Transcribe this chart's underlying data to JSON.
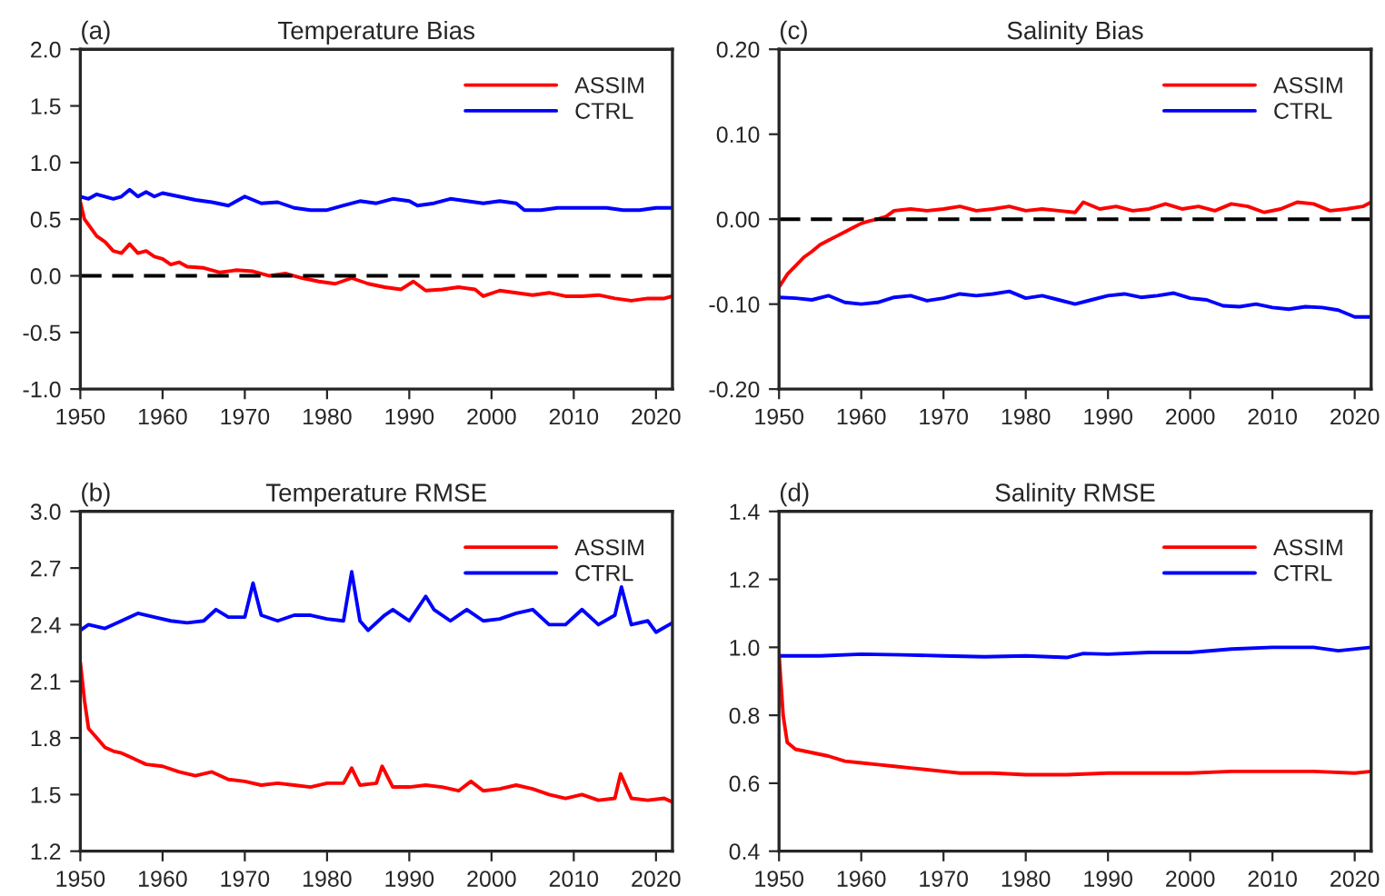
{
  "chart_data": [
    {
      "type": "line",
      "title": "Temperature Bias",
      "annotations": [
        "(a)"
      ],
      "legend": "top right",
      "grid": false,
      "line_style": "solid",
      "xlim": [
        1950,
        2022
      ],
      "xticks": [
        1950,
        1960,
        1970,
        1980,
        1990,
        2000,
        2010,
        2020
      ],
      "ylim": [
        -1.0,
        2.0
      ],
      "yticks": [
        {
          "value": -1.0,
          "label": "-1.0"
        },
        {
          "value": -0.5,
          "label": "-0.5"
        },
        {
          "value": 0.0,
          "label": "0.0"
        },
        {
          "value": 0.5,
          "label": "0.5"
        },
        {
          "value": 1.0,
          "label": "1.0"
        },
        {
          "value": 1.5,
          "label": "1.5"
        },
        {
          "value": 2.0,
          "label": "2.0"
        }
      ],
      "ref_lines": [
        {
          "axis": "y",
          "value": 0,
          "color": "#000000",
          "line_style": "dashed"
        }
      ],
      "series": [
        {
          "name": "ASSIM",
          "color": "#ff0000",
          "x": [
            1950,
            1950.5,
            1951,
            1952,
            1953,
            1954,
            1955,
            1956,
            1957,
            1958,
            1959,
            1960,
            1961,
            1962,
            1963,
            1965,
            1967,
            1969,
            1971,
            1973,
            1975,
            1977,
            1979,
            1981,
            1983,
            1985,
            1987,
            1989,
            1990.5,
            1992,
            1994,
            1996,
            1998,
            1999,
            2001,
            2003,
            2005,
            2007,
            2009,
            2011,
            2013,
            2015,
            2017,
            2019,
            2021,
            2022
          ],
          "values": [
            0.65,
            0.5,
            0.45,
            0.35,
            0.3,
            0.22,
            0.2,
            0.28,
            0.2,
            0.22,
            0.17,
            0.15,
            0.1,
            0.12,
            0.08,
            0.07,
            0.03,
            0.05,
            0.04,
            0.0,
            0.02,
            -0.02,
            -0.05,
            -0.07,
            -0.02,
            -0.07,
            -0.1,
            -0.12,
            -0.05,
            -0.13,
            -0.12,
            -0.1,
            -0.12,
            -0.18,
            -0.13,
            -0.15,
            -0.17,
            -0.15,
            -0.18,
            -0.18,
            -0.17,
            -0.2,
            -0.22,
            -0.2,
            -0.2,
            -0.18
          ]
        },
        {
          "name": "CTRL",
          "color": "#0000ff",
          "x": [
            1950,
            1951,
            1952,
            1953,
            1954,
            1955,
            1956,
            1957,
            1958,
            1959,
            1960,
            1962,
            1964,
            1966,
            1968,
            1970,
            1972,
            1974,
            1976,
            1978,
            1980,
            1982,
            1984,
            1986,
            1988,
            1990,
            1991,
            1993,
            1995,
            1997,
            1999,
            2001,
            2003,
            2004,
            2006,
            2008,
            2010,
            2012,
            2014,
            2016,
            2018,
            2020,
            2022
          ],
          "values": [
            0.7,
            0.68,
            0.72,
            0.7,
            0.68,
            0.7,
            0.76,
            0.7,
            0.74,
            0.7,
            0.73,
            0.7,
            0.67,
            0.65,
            0.62,
            0.7,
            0.64,
            0.65,
            0.6,
            0.58,
            0.58,
            0.62,
            0.66,
            0.64,
            0.68,
            0.66,
            0.62,
            0.64,
            0.68,
            0.66,
            0.64,
            0.66,
            0.64,
            0.58,
            0.58,
            0.6,
            0.6,
            0.6,
            0.6,
            0.58,
            0.58,
            0.6,
            0.6
          ]
        }
      ]
    },
    {
      "type": "line",
      "title": "Salinity Bias",
      "annotations": [
        "(c)"
      ],
      "legend": "top right",
      "grid": false,
      "line_style": "solid",
      "xlim": [
        1950,
        2022
      ],
      "xticks": [
        1950,
        1960,
        1970,
        1980,
        1990,
        2000,
        2010,
        2020
      ],
      "ylim": [
        -0.2,
        0.2
      ],
      "yticks": [
        {
          "value": -0.2,
          "label": "-0.20"
        },
        {
          "value": -0.1,
          "label": "-0.10"
        },
        {
          "value": 0.0,
          "label": "0.00"
        },
        {
          "value": 0.1,
          "label": "0.10"
        },
        {
          "value": 0.2,
          "label": "0.20"
        }
      ],
      "ref_lines": [
        {
          "axis": "y",
          "value": 0,
          "color": "#000000",
          "line_style": "dashed"
        }
      ],
      "series": [
        {
          "name": "ASSIM",
          "color": "#ff0000",
          "x": [
            1950,
            1951,
            1952,
            1953,
            1954,
            1955,
            1956,
            1957,
            1958,
            1959,
            1960,
            1961,
            1962,
            1963,
            1964,
            1966,
            1968,
            1970,
            1972,
            1974,
            1976,
            1978,
            1980,
            1982,
            1984,
            1986,
            1987,
            1989,
            1991,
            1993,
            1995,
            1997,
            1999,
            2001,
            2003,
            2005,
            2007,
            2009,
            2011,
            2013,
            2015,
            2017,
            2019,
            2021,
            2022
          ],
          "values": [
            -0.08,
            -0.065,
            -0.055,
            -0.045,
            -0.038,
            -0.03,
            -0.025,
            -0.02,
            -0.015,
            -0.01,
            -0.005,
            -0.002,
            0.0,
            0.003,
            0.01,
            0.012,
            0.01,
            0.012,
            0.015,
            0.01,
            0.012,
            0.015,
            0.01,
            0.012,
            0.01,
            0.008,
            0.02,
            0.012,
            0.015,
            0.01,
            0.012,
            0.018,
            0.012,
            0.015,
            0.01,
            0.018,
            0.015,
            0.008,
            0.012,
            0.02,
            0.018,
            0.01,
            0.012,
            0.015,
            0.02
          ]
        },
        {
          "name": "CTRL",
          "color": "#0000ff",
          "x": [
            1950,
            1952,
            1954,
            1956,
            1958,
            1960,
            1962,
            1964,
            1966,
            1968,
            1970,
            1972,
            1974,
            1976,
            1978,
            1980,
            1982,
            1984,
            1986,
            1988,
            1990,
            1992,
            1994,
            1996,
            1998,
            2000,
            2002,
            2004,
            2006,
            2008,
            2010,
            2012,
            2014,
            2016,
            2018,
            2020,
            2022
          ],
          "values": [
            -0.092,
            -0.093,
            -0.095,
            -0.09,
            -0.098,
            -0.1,
            -0.098,
            -0.092,
            -0.09,
            -0.096,
            -0.093,
            -0.088,
            -0.09,
            -0.088,
            -0.085,
            -0.093,
            -0.09,
            -0.095,
            -0.1,
            -0.095,
            -0.09,
            -0.088,
            -0.092,
            -0.09,
            -0.087,
            -0.093,
            -0.095,
            -0.102,
            -0.103,
            -0.1,
            -0.104,
            -0.106,
            -0.103,
            -0.104,
            -0.107,
            -0.115,
            -0.115
          ]
        }
      ]
    },
    {
      "type": "line",
      "title": "Temperature RMSE",
      "annotations": [
        "(b)"
      ],
      "legend": "top right",
      "grid": false,
      "line_style": "solid",
      "xlim": [
        1950,
        2022
      ],
      "xticks": [
        1950,
        1960,
        1970,
        1980,
        1990,
        2000,
        2010,
        2020
      ],
      "ylim": [
        1.2,
        3.0
      ],
      "yticks": [
        {
          "value": 1.2,
          "label": "1.2"
        },
        {
          "value": 1.5,
          "label": "1.5"
        },
        {
          "value": 1.8,
          "label": "1.8"
        },
        {
          "value": 2.1,
          "label": "2.1"
        },
        {
          "value": 2.4,
          "label": "2.4"
        },
        {
          "value": 2.7,
          "label": "2.7"
        },
        {
          "value": 3.0,
          "label": "3.0"
        }
      ],
      "series": [
        {
          "name": "ASSIM",
          "color": "#ff0000",
          "x": [
            1950,
            1950.5,
            1951,
            1952,
            1953,
            1954,
            1955,
            1956,
            1957,
            1958,
            1960,
            1962,
            1964,
            1966,
            1968,
            1970,
            1972,
            1974,
            1976,
            1978,
            1980,
            1982,
            1983,
            1984,
            1986,
            1986.7,
            1988,
            1990,
            1992,
            1994,
            1996,
            1997.5,
            1999,
            2001,
            2003,
            2005,
            2007,
            2009,
            2011,
            2013,
            2015,
            2015.7,
            2017,
            2019,
            2021,
            2022
          ],
          "values": [
            2.2,
            2.0,
            1.85,
            1.8,
            1.75,
            1.73,
            1.72,
            1.7,
            1.68,
            1.66,
            1.65,
            1.62,
            1.6,
            1.62,
            1.58,
            1.57,
            1.55,
            1.56,
            1.55,
            1.54,
            1.56,
            1.56,
            1.64,
            1.55,
            1.56,
            1.65,
            1.54,
            1.54,
            1.55,
            1.54,
            1.52,
            1.57,
            1.52,
            1.53,
            1.55,
            1.53,
            1.5,
            1.48,
            1.5,
            1.47,
            1.48,
            1.61,
            1.48,
            1.47,
            1.48,
            1.46
          ]
        },
        {
          "name": "CTRL",
          "color": "#0000ff",
          "x": [
            1950,
            1951,
            1953,
            1955,
            1957,
            1959,
            1961,
            1963,
            1965,
            1966.5,
            1968,
            1970,
            1971,
            1972,
            1974,
            1976,
            1978,
            1980,
            1982,
            1983,
            1984,
            1985,
            1987,
            1988,
            1990,
            1992,
            1993,
            1995,
            1997,
            1999,
            2001,
            2003,
            2005,
            2007,
            2009,
            2011,
            2013,
            2015,
            2015.8,
            2017,
            2019,
            2020,
            2022
          ],
          "values": [
            2.37,
            2.4,
            2.38,
            2.42,
            2.46,
            2.44,
            2.42,
            2.41,
            2.42,
            2.48,
            2.44,
            2.44,
            2.62,
            2.45,
            2.42,
            2.45,
            2.45,
            2.43,
            2.42,
            2.68,
            2.42,
            2.37,
            2.45,
            2.48,
            2.42,
            2.55,
            2.48,
            2.42,
            2.48,
            2.42,
            2.43,
            2.46,
            2.48,
            2.4,
            2.4,
            2.48,
            2.4,
            2.45,
            2.6,
            2.4,
            2.42,
            2.36,
            2.41
          ]
        }
      ]
    },
    {
      "type": "line",
      "title": "Salinity RMSE",
      "annotations": [
        "(d)"
      ],
      "legend": "top right",
      "grid": false,
      "line_style": "solid",
      "xlim": [
        1950,
        2022
      ],
      "xticks": [
        1950,
        1960,
        1970,
        1980,
        1990,
        2000,
        2010,
        2020
      ],
      "ylim": [
        0.4,
        1.4
      ],
      "yticks": [
        {
          "value": 0.4,
          "label": "0.4"
        },
        {
          "value": 0.6,
          "label": "0.6"
        },
        {
          "value": 0.8,
          "label": "0.8"
        },
        {
          "value": 1.0,
          "label": "1.0"
        },
        {
          "value": 1.2,
          "label": "1.2"
        },
        {
          "value": 1.4,
          "label": "1.4"
        }
      ],
      "series": [
        {
          "name": "ASSIM",
          "color": "#ff0000",
          "x": [
            1950,
            1950.5,
            1951,
            1952,
            1954,
            1956,
            1958,
            1960,
            1962,
            1964,
            1966,
            1968,
            1970,
            1972,
            1976,
            1980,
            1985,
            1990,
            1995,
            2000,
            2005,
            2010,
            2015,
            2020,
            2022
          ],
          "values": [
            0.98,
            0.8,
            0.72,
            0.7,
            0.69,
            0.68,
            0.665,
            0.66,
            0.655,
            0.65,
            0.645,
            0.64,
            0.635,
            0.63,
            0.63,
            0.625,
            0.625,
            0.63,
            0.63,
            0.63,
            0.635,
            0.635,
            0.635,
            0.63,
            0.635
          ]
        },
        {
          "name": "CTRL",
          "color": "#0000ff",
          "x": [
            1950,
            1955,
            1960,
            1965,
            1970,
            1975,
            1980,
            1985,
            1987,
            1990,
            1995,
            2000,
            2005,
            2010,
            2015,
            2018,
            2022
          ],
          "values": [
            0.975,
            0.975,
            0.98,
            0.978,
            0.975,
            0.972,
            0.975,
            0.97,
            0.982,
            0.98,
            0.985,
            0.985,
            0.995,
            1.0,
            1.0,
            0.99,
            1.0
          ]
        }
      ]
    }
  ]
}
